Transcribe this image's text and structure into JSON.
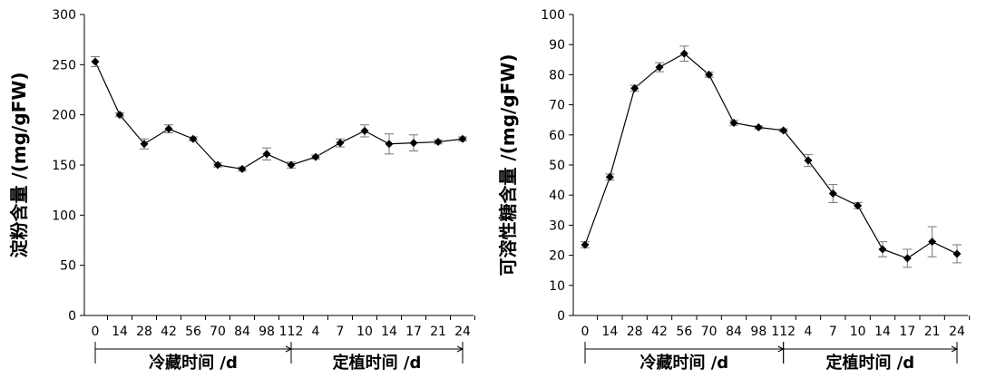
{
  "chart_data": [
    {
      "type": "line",
      "ylabel": "淀粉含量 /(mg/gFW)",
      "ylim": [
        0,
        300
      ],
      "yticks": [
        0,
        50,
        100,
        150,
        200,
        250,
        300
      ],
      "categories": [
        "0",
        "14",
        "28",
        "42",
        "56",
        "70",
        "84",
        "98",
        "112",
        "4",
        "7",
        "10",
        "14",
        "17",
        "21",
        "24"
      ],
      "groups": [
        {
          "label": "冷藏时间 /d",
          "from": 0,
          "to": 8
        },
        {
          "label": "定植时间 /d",
          "from": 8,
          "to": 15
        }
      ],
      "series": [
        {
          "values": [
            253,
            200,
            171,
            186,
            176,
            150,
            146,
            161,
            150,
            158,
            172,
            184,
            171,
            172,
            173,
            176
          ],
          "errors": [
            5,
            2,
            5,
            4,
            2,
            2,
            2,
            6,
            3,
            2,
            4,
            6,
            10,
            8,
            2,
            2
          ]
        }
      ],
      "grid": false,
      "color": "#000000"
    },
    {
      "type": "line",
      "ylabel": "可溶性糖含量 /(mg/gFW)",
      "ylim": [
        0,
        100
      ],
      "yticks": [
        0,
        10,
        20,
        30,
        40,
        50,
        60,
        70,
        80,
        90,
        100
      ],
      "categories": [
        "0",
        "14",
        "28",
        "42",
        "56",
        "70",
        "84",
        "98",
        "112",
        "4",
        "7",
        "10",
        "14",
        "17",
        "21",
        "24"
      ],
      "groups": [
        {
          "label": "冷藏时间 /d",
          "from": 0,
          "to": 8
        },
        {
          "label": "定植时间 /d",
          "from": 8,
          "to": 15
        }
      ],
      "series": [
        {
          "values": [
            23.5,
            46,
            75.5,
            82.5,
            87,
            80,
            64,
            62.5,
            61.5,
            51.5,
            40.5,
            36.5,
            22,
            19,
            24.5,
            20.5
          ],
          "errors": [
            1,
            1,
            1,
            1.5,
            2.5,
            0.8,
            0.8,
            0.5,
            0.5,
            2,
            3,
            1,
            2.5,
            3,
            5,
            3
          ]
        }
      ],
      "grid": false,
      "color": "#000000"
    }
  ]
}
